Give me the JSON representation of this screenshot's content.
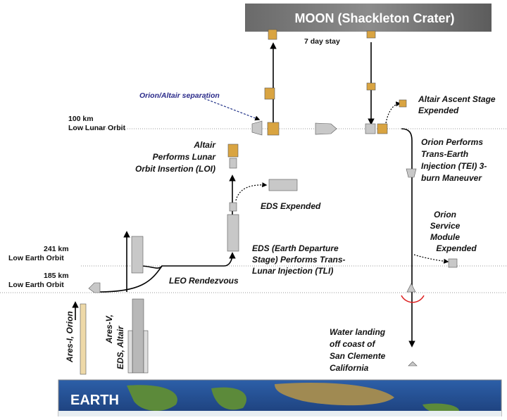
{
  "moon": "MOON (Shackleton Crater)",
  "stay": "7 day stay",
  "separation": "Orion/Altair separation",
  "altair_ascent": [
    "Altair Ascent Stage",
    "Expended"
  ],
  "lunar_orbit": {
    "altitude": "100 km",
    "name": "Low Lunar Orbit"
  },
  "loi": [
    "Altair",
    "Performs Lunar",
    "Orbit Insertion (LOI)"
  ],
  "tei": [
    "Orion Performs",
    "Trans-Earth",
    "Injection (TEI) 3-",
    "burn Maneuver"
  ],
  "eds_expended": "EDS Expended",
  "service_module": [
    "Orion",
    "Service",
    "Module",
    "Expended"
  ],
  "high_earth_orbit": {
    "altitude": "241 km",
    "name": "Low Earth Orbit"
  },
  "tli": [
    "EDS (Earth Departure",
    "Stage) Performs Trans-",
    "Lunar Injection (TLI)"
  ],
  "low_earth_orbit": {
    "altitude": "185 km",
    "name": "Low Earth Orbit"
  },
  "rendezvous": "LEO Rendezvous",
  "ares1": "Ares-I, Orion",
  "ares5": [
    "Ares-V,",
    "EDS, Altair"
  ],
  "landing": [
    "Water landing",
    "off coast of",
    "San Clemente",
    "California"
  ],
  "earth": "EARTH"
}
